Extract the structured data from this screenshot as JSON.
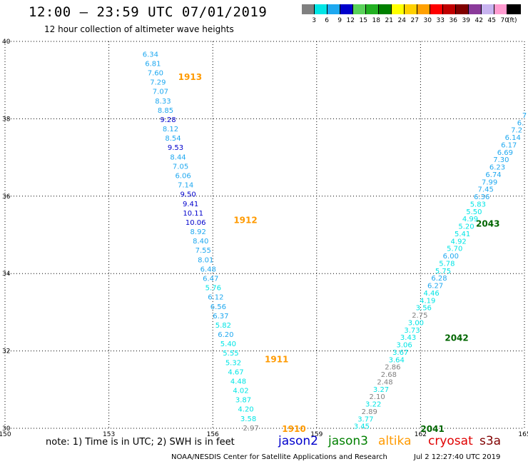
{
  "header": {
    "title": "12:00 — 23:59 UTC 07/01/2019",
    "subtitle": "12 hour collection of altimeter wave heights"
  },
  "color_scale": {
    "unit": "(ft)",
    "swatches": [
      {
        "color": "#808080",
        "label": "3"
      },
      {
        "color": "#00e5e5",
        "label": "6"
      },
      {
        "color": "#1ea8f0",
        "label": "9"
      },
      {
        "color": "#0000cc",
        "label": "12"
      },
      {
        "color": "#5ad25a",
        "label": "15"
      },
      {
        "color": "#22b022",
        "label": "18"
      },
      {
        "color": "#008000",
        "label": "21"
      },
      {
        "color": "#ffff00",
        "label": "24"
      },
      {
        "color": "#ffd000",
        "label": "27"
      },
      {
        "color": "#ffa000",
        "label": "30"
      },
      {
        "color": "#ff0000",
        "label": "33"
      },
      {
        "color": "#c00000",
        "label": "36"
      },
      {
        "color": "#800000",
        "label": "39"
      },
      {
        "color": "#8a3a9a",
        "label": "42"
      },
      {
        "color": "#c8b4f0",
        "label": "45"
      },
      {
        "color": "#ff9bd0",
        "label": "70"
      },
      {
        "color": "#000000",
        "label": ""
      }
    ]
  },
  "map": {
    "lon_ticks": [
      "150",
      "153",
      "156",
      "159",
      "162",
      "165"
    ],
    "lat_ticks": [
      "40",
      "38",
      "36",
      "34",
      "32",
      "30"
    ],
    "lon_range": [
      150,
      165
    ],
    "lat_range": [
      30,
      40
    ]
  },
  "chart_data": {
    "type": "scatter",
    "units": "feet",
    "time_labels": [
      {
        "text": "1913",
        "lon": 155.0,
        "lat": 39.1,
        "color": "#ff9a00"
      },
      {
        "text": "1912",
        "lon": 156.6,
        "lat": 35.4,
        "color": "#ff9a00"
      },
      {
        "text": "1911",
        "lon": 157.5,
        "lat": 31.8,
        "color": "#ff9a00"
      },
      {
        "text": "1910",
        "lon": 158.0,
        "lat": 30.0,
        "color": "#ff9a00"
      },
      {
        "text": "2043",
        "lon": 163.6,
        "lat": 35.3,
        "color": "#006600"
      },
      {
        "text": "2042",
        "lon": 162.7,
        "lat": 32.35,
        "color": "#006600"
      },
      {
        "text": "2041",
        "lon": 162.0,
        "lat": 30.0,
        "color": "#006600"
      }
    ],
    "tracks": [
      {
        "name": "1910-1913",
        "start": [
          154.2,
          39.68
        ],
        "end": [
          157.1,
          30.02
        ],
        "values": [
          "6.34",
          "6.81",
          "7.60",
          "7.29",
          "7.07",
          "8.33",
          "8.85",
          "9.28",
          "8.12",
          "8.54",
          "9.53",
          "8.44",
          "7.05",
          "6.06",
          "7.14",
          "9.50",
          "9.41",
          "10.11",
          "10.06",
          "8.92",
          "8.40",
          "7.55",
          "8.01",
          "6.48",
          "6.47",
          "5.76",
          "6.12",
          "6.56",
          "6.37",
          "5.82",
          "6.20",
          "5.40",
          "5.55",
          "5.32",
          "4.67",
          "4.48",
          "4.02",
          "3.87",
          "4.20",
          "3.58",
          "2.97"
        ]
      },
      {
        "name": "2041-2043",
        "start": [
          160.3,
          30.06
        ],
        "end": [
          165.0,
          38.1
        ],
        "values": [
          "3.45",
          "3.77",
          "2.89",
          "3.22",
          "2.10",
          "3.27",
          "2.48",
          "2.68",
          "2.86",
          "3.64",
          "3.67",
          "3.06",
          "3.43",
          "3.73",
          "3.00",
          "2.75",
          "3.56",
          "4.19",
          "4.46",
          "6.27",
          "6.28",
          "5.75",
          "5.78",
          "6.00",
          "5.70",
          "4.92",
          "5.41",
          "5.20",
          "4.99",
          "5.50",
          "5.83",
          "6.36",
          "7.45",
          "7.99",
          "6.74",
          "6.23",
          "7.30",
          "6.69",
          "6.17",
          "6.14",
          "7.2",
          "6.",
          "7"
        ]
      }
    ]
  },
  "legend": {
    "note": "note:  1) Time is in UTC;  2) SWH is in feet",
    "satellites": [
      {
        "name": "jason2",
        "color": "#0000cc"
      },
      {
        "name": "jason3",
        "color": "#008000"
      },
      {
        "name": "altika",
        "color": "#ff9a00"
      },
      {
        "name": "cryosat",
        "color": "#e00000"
      },
      {
        "name": "s3a",
        "color": "#800000"
      }
    ]
  },
  "footer": {
    "credit": "NOAA/NESDIS Center for Satellite Applications and Research",
    "timestamp": "Jul  2 12:27:40 UTC 2019"
  }
}
